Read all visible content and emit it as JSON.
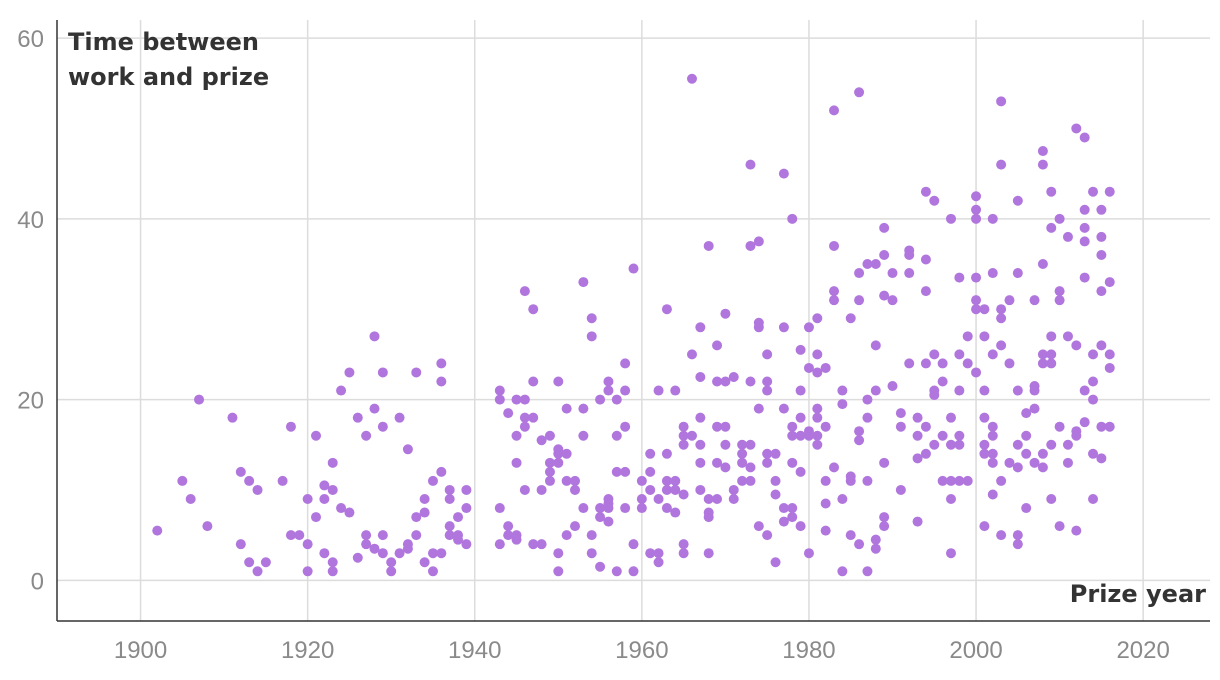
{
  "chart_data": {
    "type": "scatter",
    "title": "",
    "ylabel_lines": [
      "Time between",
      "work and prize"
    ],
    "xlabel": "Prize year",
    "xlim": [
      1890,
      2028
    ],
    "ylim": [
      -4.5,
      62
    ],
    "x_ticks": [
      1900,
      1920,
      1940,
      1960,
      1980,
      2000,
      2020
    ],
    "y_ticks": [
      0,
      20,
      40,
      60
    ],
    "grid": true,
    "point_color": "#b076dd",
    "points": [
      [
        1902,
        5.5
      ],
      [
        1905,
        11
      ],
      [
        1906,
        9
      ],
      [
        1907,
        20
      ],
      [
        1908,
        6
      ],
      [
        1911,
        18
      ],
      [
        1912,
        12
      ],
      [
        1912,
        4
      ],
      [
        1913,
        11
      ],
      [
        1913,
        2
      ],
      [
        1914,
        10
      ],
      [
        1914,
        1
      ],
      [
        1915,
        2
      ],
      [
        1917,
        11
      ],
      [
        1918,
        17
      ],
      [
        1918,
        5
      ],
      [
        1919,
        5
      ],
      [
        1920,
        9
      ],
      [
        1920,
        4
      ],
      [
        1920,
        1
      ],
      [
        1921,
        16
      ],
      [
        1921,
        7
      ],
      [
        1922,
        10.5
      ],
      [
        1922,
        9
      ],
      [
        1922,
        3
      ],
      [
        1923,
        13
      ],
      [
        1923,
        10
      ],
      [
        1923,
        2
      ],
      [
        1923,
        1
      ],
      [
        1924,
        21
      ],
      [
        1924,
        8
      ],
      [
        1925,
        23
      ],
      [
        1925,
        7.5
      ],
      [
        1926,
        18
      ],
      [
        1926,
        2.5
      ],
      [
        1927,
        16
      ],
      [
        1927,
        5
      ],
      [
        1927,
        4
      ],
      [
        1928,
        27
      ],
      [
        1928,
        19
      ],
      [
        1928,
        3.5
      ],
      [
        1929,
        23
      ],
      [
        1929,
        17
      ],
      [
        1929,
        5
      ],
      [
        1929,
        3
      ],
      [
        1930,
        2
      ],
      [
        1930,
        1
      ],
      [
        1931,
        18
      ],
      [
        1931,
        3
      ],
      [
        1932,
        14.5
      ],
      [
        1932,
        4
      ],
      [
        1932,
        3.5
      ],
      [
        1933,
        23
      ],
      [
        1933,
        7
      ],
      [
        1933,
        5
      ],
      [
        1934,
        9
      ],
      [
        1934,
        7.5
      ],
      [
        1934,
        2
      ],
      [
        1935,
        11
      ],
      [
        1935,
        3
      ],
      [
        1935,
        1
      ],
      [
        1936,
        24
      ],
      [
        1936,
        22
      ],
      [
        1936,
        12
      ],
      [
        1936,
        3
      ],
      [
        1937,
        10
      ],
      [
        1937,
        9
      ],
      [
        1937,
        6
      ],
      [
        1937,
        5
      ],
      [
        1938,
        7
      ],
      [
        1938,
        5
      ],
      [
        1938,
        4.5
      ],
      [
        1939,
        10
      ],
      [
        1939,
        8
      ],
      [
        1939,
        4
      ],
      [
        1943,
        21
      ],
      [
        1943,
        20
      ],
      [
        1943,
        8
      ],
      [
        1943,
        4
      ],
      [
        1944,
        18.5
      ],
      [
        1944,
        6
      ],
      [
        1944,
        5
      ],
      [
        1945,
        20
      ],
      [
        1945,
        16
      ],
      [
        1945,
        13
      ],
      [
        1945,
        5
      ],
      [
        1945,
        4.5
      ],
      [
        1946,
        32
      ],
      [
        1946,
        20
      ],
      [
        1946,
        18
      ],
      [
        1946,
        17
      ],
      [
        1946,
        10
      ],
      [
        1947,
        30
      ],
      [
        1947,
        22
      ],
      [
        1947,
        18
      ],
      [
        1947,
        4
      ],
      [
        1948,
        15.5
      ],
      [
        1948,
        10
      ],
      [
        1948,
        4
      ],
      [
        1949,
        16
      ],
      [
        1949,
        13
      ],
      [
        1949,
        12
      ],
      [
        1949,
        11
      ],
      [
        1950,
        22
      ],
      [
        1950,
        14.5
      ],
      [
        1950,
        14
      ],
      [
        1950,
        13
      ],
      [
        1950,
        3
      ],
      [
        1950,
        1
      ],
      [
        1951,
        19
      ],
      [
        1951,
        14
      ],
      [
        1951,
        11
      ],
      [
        1951,
        5
      ],
      [
        1952,
        11
      ],
      [
        1952,
        10
      ],
      [
        1952,
        6
      ],
      [
        1953,
        33
      ],
      [
        1953,
        19
      ],
      [
        1953,
        16
      ],
      [
        1953,
        8
      ],
      [
        1954,
        29
      ],
      [
        1954,
        27
      ],
      [
        1954,
        5
      ],
      [
        1954,
        3
      ],
      [
        1955,
        20
      ],
      [
        1955,
        8
      ],
      [
        1955,
        7
      ],
      [
        1955,
        1.5
      ],
      [
        1956,
        22
      ],
      [
        1956,
        21
      ],
      [
        1956,
        9
      ],
      [
        1956,
        8.5
      ],
      [
        1956,
        8
      ],
      [
        1956,
        6.5
      ],
      [
        1957,
        20
      ],
      [
        1957,
        16
      ],
      [
        1957,
        12
      ],
      [
        1957,
        1
      ],
      [
        1958,
        24
      ],
      [
        1958,
        21
      ],
      [
        1958,
        17
      ],
      [
        1958,
        12
      ],
      [
        1958,
        8
      ],
      [
        1959,
        34.5
      ],
      [
        1959,
        4
      ],
      [
        1959,
        1
      ],
      [
        1960,
        11
      ],
      [
        1960,
        9
      ],
      [
        1960,
        8
      ],
      [
        1961,
        14
      ],
      [
        1961,
        12
      ],
      [
        1961,
        10
      ],
      [
        1961,
        3
      ],
      [
        1962,
        21
      ],
      [
        1962,
        9
      ],
      [
        1962,
        3
      ],
      [
        1962,
        2
      ],
      [
        1963,
        30
      ],
      [
        1963,
        14
      ],
      [
        1963,
        11
      ],
      [
        1963,
        10
      ],
      [
        1963,
        8
      ],
      [
        1964,
        21
      ],
      [
        1964,
        11
      ],
      [
        1964,
        10
      ],
      [
        1964,
        7.5
      ],
      [
        1965,
        17
      ],
      [
        1965,
        16
      ],
      [
        1965,
        15
      ],
      [
        1965,
        9.5
      ],
      [
        1965,
        4
      ],
      [
        1965,
        3
      ],
      [
        1966,
        55.5
      ],
      [
        1966,
        25
      ],
      [
        1966,
        16
      ],
      [
        1967,
        28
      ],
      [
        1967,
        22.5
      ],
      [
        1967,
        18
      ],
      [
        1967,
        15
      ],
      [
        1967,
        13
      ],
      [
        1967,
        10
      ],
      [
        1968,
        37
      ],
      [
        1968,
        9
      ],
      [
        1968,
        7.5
      ],
      [
        1968,
        7
      ],
      [
        1968,
        3
      ],
      [
        1969,
        26
      ],
      [
        1969,
        22
      ],
      [
        1969,
        17
      ],
      [
        1969,
        13
      ],
      [
        1969,
        9
      ],
      [
        1970,
        29.5
      ],
      [
        1970,
        22
      ],
      [
        1970,
        17
      ],
      [
        1970,
        15
      ],
      [
        1970,
        12.5
      ],
      [
        1971,
        22.5
      ],
      [
        1971,
        10
      ],
      [
        1971,
        9
      ],
      [
        1972,
        15
      ],
      [
        1972,
        14
      ],
      [
        1972,
        13
      ],
      [
        1972,
        11
      ],
      [
        1973,
        46
      ],
      [
        1973,
        37
      ],
      [
        1973,
        22
      ],
      [
        1973,
        15
      ],
      [
        1973,
        12.5
      ],
      [
        1973,
        11
      ],
      [
        1974,
        37.5
      ],
      [
        1974,
        28.5
      ],
      [
        1974,
        28
      ],
      [
        1974,
        19
      ],
      [
        1974,
        6
      ],
      [
        1975,
        25
      ],
      [
        1975,
        22
      ],
      [
        1975,
        21
      ],
      [
        1975,
        14
      ],
      [
        1975,
        13
      ],
      [
        1975,
        5
      ],
      [
        1976,
        14
      ],
      [
        1976,
        11
      ],
      [
        1976,
        9.5
      ],
      [
        1976,
        2
      ],
      [
        1977,
        45
      ],
      [
        1977,
        28
      ],
      [
        1977,
        19
      ],
      [
        1977,
        8
      ],
      [
        1977,
        6.5
      ],
      [
        1978,
        40
      ],
      [
        1978,
        17
      ],
      [
        1978,
        16
      ],
      [
        1978,
        13
      ],
      [
        1978,
        8
      ],
      [
        1978,
        7
      ],
      [
        1979,
        25.5
      ],
      [
        1979,
        21
      ],
      [
        1979,
        18
      ],
      [
        1979,
        16
      ],
      [
        1979,
        12
      ],
      [
        1979,
        6
      ],
      [
        1980,
        28
      ],
      [
        1980,
        23.5
      ],
      [
        1980,
        16.5
      ],
      [
        1980,
        16
      ],
      [
        1980,
        3
      ],
      [
        1981,
        29
      ],
      [
        1981,
        25
      ],
      [
        1981,
        23
      ],
      [
        1981,
        19
      ],
      [
        1981,
        18
      ],
      [
        1981,
        16
      ],
      [
        1981,
        15
      ],
      [
        1982,
        23.5
      ],
      [
        1982,
        17
      ],
      [
        1982,
        11
      ],
      [
        1982,
        8.5
      ],
      [
        1982,
        5.5
      ],
      [
        1983,
        52
      ],
      [
        1983,
        37
      ],
      [
        1983,
        32
      ],
      [
        1983,
        31
      ],
      [
        1983,
        12.5
      ],
      [
        1984,
        21
      ],
      [
        1984,
        19.5
      ],
      [
        1984,
        9
      ],
      [
        1984,
        1
      ],
      [
        1985,
        29
      ],
      [
        1985,
        11.5
      ],
      [
        1985,
        11
      ],
      [
        1985,
        5
      ],
      [
        1986,
        54
      ],
      [
        1986,
        34
      ],
      [
        1986,
        31
      ],
      [
        1986,
        16.5
      ],
      [
        1986,
        15.5
      ],
      [
        1986,
        4
      ],
      [
        1987,
        35
      ],
      [
        1987,
        20
      ],
      [
        1987,
        18
      ],
      [
        1987,
        11
      ],
      [
        1987,
        1
      ],
      [
        1988,
        35
      ],
      [
        1988,
        26
      ],
      [
        1988,
        21
      ],
      [
        1988,
        4.5
      ],
      [
        1988,
        3.5
      ],
      [
        1989,
        39
      ],
      [
        1989,
        36
      ],
      [
        1989,
        31.5
      ],
      [
        1989,
        13
      ],
      [
        1989,
        7
      ],
      [
        1989,
        6
      ],
      [
        1990,
        34
      ],
      [
        1990,
        31
      ],
      [
        1990,
        21.5
      ],
      [
        1991,
        18.5
      ],
      [
        1991,
        17
      ],
      [
        1991,
        10
      ],
      [
        1992,
        36.5
      ],
      [
        1992,
        36
      ],
      [
        1992,
        34
      ],
      [
        1992,
        24
      ],
      [
        1993,
        18
      ],
      [
        1993,
        16
      ],
      [
        1993,
        13.5
      ],
      [
        1993,
        6.5
      ],
      [
        1994,
        43
      ],
      [
        1994,
        35.5
      ],
      [
        1994,
        32
      ],
      [
        1994,
        24
      ],
      [
        1994,
        17
      ],
      [
        1994,
        14
      ],
      [
        1995,
        42
      ],
      [
        1995,
        25
      ],
      [
        1995,
        21
      ],
      [
        1995,
        20.5
      ],
      [
        1995,
        15
      ],
      [
        1996,
        24
      ],
      [
        1996,
        22
      ],
      [
        1996,
        16
      ],
      [
        1996,
        11
      ],
      [
        1997,
        40
      ],
      [
        1997,
        18
      ],
      [
        1997,
        15
      ],
      [
        1997,
        11
      ],
      [
        1997,
        9
      ],
      [
        1997,
        3
      ],
      [
        1998,
        33.5
      ],
      [
        1998,
        25
      ],
      [
        1998,
        21
      ],
      [
        1998,
        16
      ],
      [
        1998,
        15
      ],
      [
        1998,
        11
      ],
      [
        1999,
        27
      ],
      [
        1999,
        24
      ],
      [
        1999,
        11
      ],
      [
        2000,
        42.5
      ],
      [
        2000,
        41
      ],
      [
        2000,
        40
      ],
      [
        2000,
        33.5
      ],
      [
        2000,
        31
      ],
      [
        2000,
        30
      ],
      [
        2000,
        23
      ],
      [
        2001,
        30
      ],
      [
        2001,
        27
      ],
      [
        2001,
        21
      ],
      [
        2001,
        18
      ],
      [
        2001,
        15
      ],
      [
        2001,
        14
      ],
      [
        2001,
        6
      ],
      [
        2002,
        40
      ],
      [
        2002,
        34
      ],
      [
        2002,
        25
      ],
      [
        2002,
        17
      ],
      [
        2002,
        16
      ],
      [
        2002,
        14
      ],
      [
        2002,
        13
      ],
      [
        2002,
        9.5
      ],
      [
        2003,
        53
      ],
      [
        2003,
        46
      ],
      [
        2003,
        30
      ],
      [
        2003,
        29
      ],
      [
        2003,
        26
      ],
      [
        2003,
        11
      ],
      [
        2003,
        5
      ],
      [
        2004,
        31
      ],
      [
        2004,
        24
      ],
      [
        2004,
        13
      ],
      [
        2005,
        42
      ],
      [
        2005,
        34
      ],
      [
        2005,
        21
      ],
      [
        2005,
        15
      ],
      [
        2005,
        12.5
      ],
      [
        2005,
        5
      ],
      [
        2005,
        4
      ],
      [
        2006,
        18.5
      ],
      [
        2006,
        16
      ],
      [
        2006,
        14
      ],
      [
        2006,
        8
      ],
      [
        2007,
        31
      ],
      [
        2007,
        21.5
      ],
      [
        2007,
        21
      ],
      [
        2007,
        19
      ],
      [
        2007,
        13
      ],
      [
        2008,
        47.5
      ],
      [
        2008,
        46
      ],
      [
        2008,
        35
      ],
      [
        2008,
        25
      ],
      [
        2008,
        24
      ],
      [
        2008,
        14
      ],
      [
        2008,
        12.5
      ],
      [
        2009,
        43
      ],
      [
        2009,
        39
      ],
      [
        2009,
        27
      ],
      [
        2009,
        25
      ],
      [
        2009,
        24
      ],
      [
        2009,
        15
      ],
      [
        2009,
        9
      ],
      [
        2010,
        40
      ],
      [
        2010,
        32
      ],
      [
        2010,
        31
      ],
      [
        2010,
        17
      ],
      [
        2010,
        6
      ],
      [
        2011,
        38
      ],
      [
        2011,
        27
      ],
      [
        2011,
        15
      ],
      [
        2011,
        13
      ],
      [
        2012,
        50
      ],
      [
        2012,
        26
      ],
      [
        2012,
        16.5
      ],
      [
        2012,
        16
      ],
      [
        2012,
        5.5
      ],
      [
        2013,
        49
      ],
      [
        2013,
        41
      ],
      [
        2013,
        39
      ],
      [
        2013,
        37.5
      ],
      [
        2013,
        33.5
      ],
      [
        2013,
        21
      ],
      [
        2013,
        17.5
      ],
      [
        2014,
        43
      ],
      [
        2014,
        25
      ],
      [
        2014,
        22
      ],
      [
        2014,
        20
      ],
      [
        2014,
        14
      ],
      [
        2014,
        9
      ],
      [
        2015,
        41
      ],
      [
        2015,
        38
      ],
      [
        2015,
        36
      ],
      [
        2015,
        32
      ],
      [
        2015,
        26
      ],
      [
        2015,
        17
      ],
      [
        2015,
        13.5
      ],
      [
        2016,
        43
      ],
      [
        2016,
        33
      ],
      [
        2016,
        25
      ],
      [
        2016,
        23.5
      ],
      [
        2016,
        17
      ]
    ]
  }
}
